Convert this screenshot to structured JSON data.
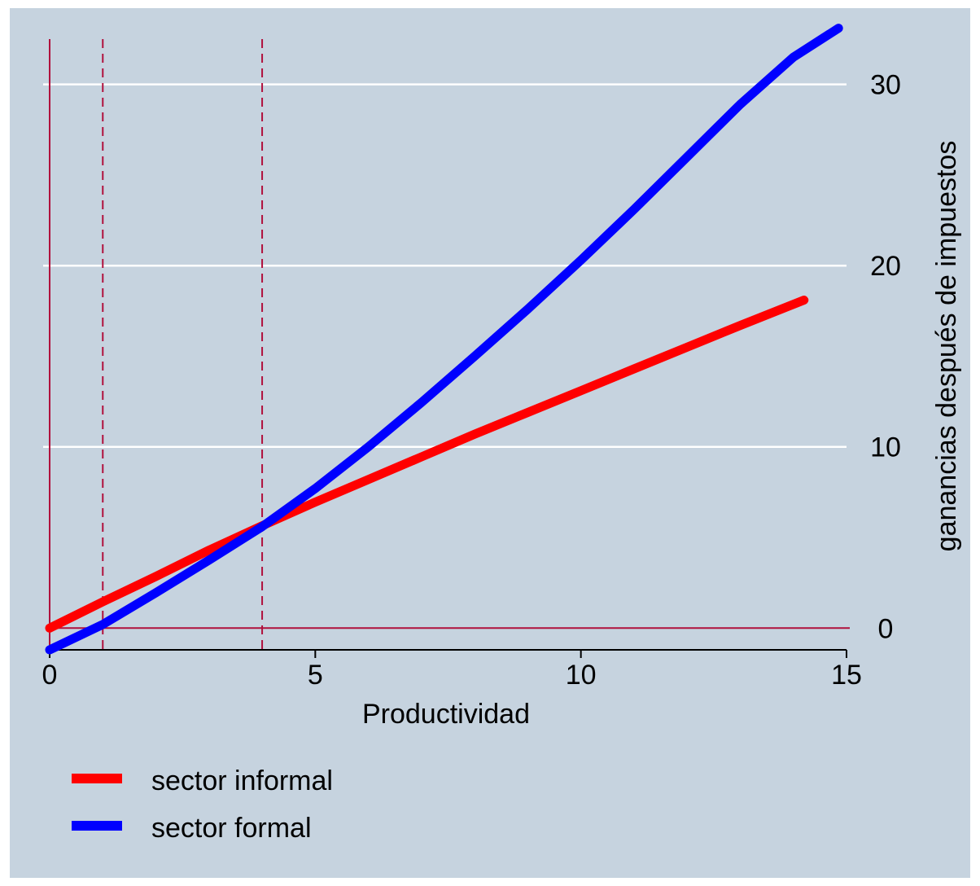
{
  "chart_data": {
    "type": "line",
    "title": "",
    "xlabel": "Productividad",
    "ylabel": "ganancias después de impuestos",
    "xlim": [
      0,
      15
    ],
    "ylim": [
      -1.2,
      32.5
    ],
    "x_ticks": [
      "0",
      "5",
      "10",
      "15"
    ],
    "y_ticks": [
      "0",
      "10",
      "20",
      "30"
    ],
    "y_axis_side": "right",
    "grid": "horizontal",
    "legend_position": "bottom-left",
    "reference_lines": {
      "vertical_solid": [
        0
      ],
      "vertical_dashed": [
        1,
        4
      ],
      "horizontal_solid": [
        0
      ]
    },
    "series": [
      {
        "name": "sector informal",
        "color": "#ff0000",
        "x": [
          0,
          1,
          2,
          3,
          4,
          5,
          6,
          7,
          8,
          9,
          10,
          11,
          12,
          13,
          14.2
        ],
        "y": [
          0,
          1.45,
          2.85,
          4.3,
          5.65,
          6.95,
          8.2,
          9.45,
          10.7,
          11.9,
          13.1,
          14.3,
          15.5,
          16.7,
          18.1
        ]
      },
      {
        "name": "sector formal",
        "color": "#0000ff",
        "x": [
          0,
          1,
          2,
          3,
          4,
          5,
          6,
          7,
          8,
          9,
          10,
          11,
          12,
          13,
          14,
          14.85
        ],
        "y": [
          -1.2,
          0.2,
          1.95,
          3.75,
          5.6,
          7.7,
          10.0,
          12.45,
          15.0,
          17.6,
          20.3,
          23.1,
          26.0,
          28.9,
          31.5,
          33.1
        ]
      }
    ],
    "colors": {
      "background": "#c6d3df",
      "grid": "#ffffff",
      "reference": "#b0103c",
      "axis": "#000000"
    }
  }
}
